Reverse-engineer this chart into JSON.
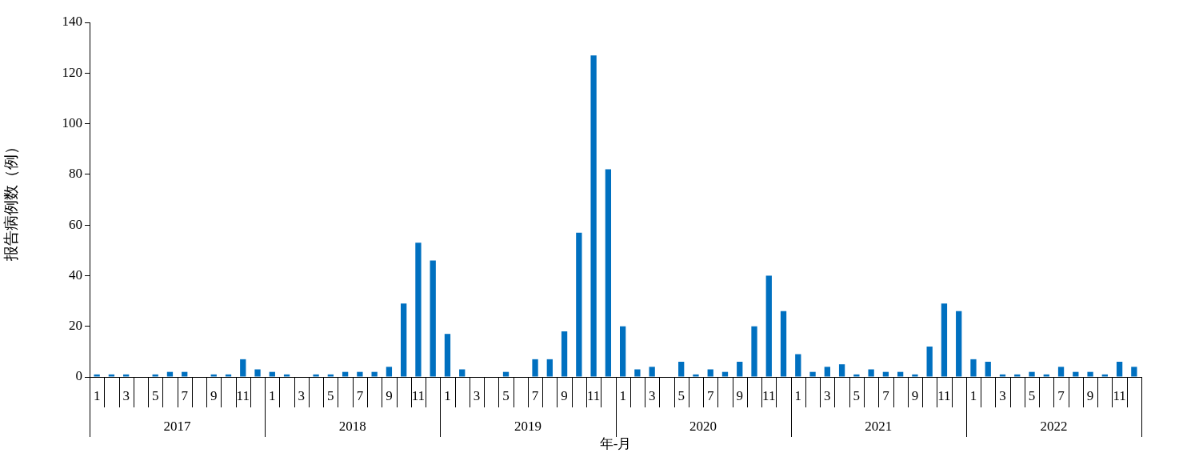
{
  "chart_data": {
    "type": "bar",
    "xlabel": "年-月",
    "ylabel": "报告病例数（例）",
    "categories": [
      "1",
      null,
      "3",
      null,
      "5",
      null,
      "7",
      null,
      "9",
      null,
      "11",
      null,
      "1",
      null,
      "3",
      null,
      "5",
      null,
      "7",
      null,
      "9",
      null,
      "11",
      null,
      "1",
      null,
      "3",
      null,
      "5",
      null,
      "7",
      null,
      "9",
      null,
      "11",
      null,
      "1",
      null,
      "3",
      null,
      "5",
      null,
      "7",
      null,
      "9",
      null,
      "11",
      null,
      "1",
      null,
      "3",
      null,
      "5",
      null,
      "7",
      null,
      "9",
      null,
      "11",
      null,
      "1",
      null,
      "3",
      null,
      "5",
      null,
      "7",
      null,
      "9",
      null,
      "11",
      null
    ],
    "values": [
      1,
      1,
      1,
      0,
      1,
      2,
      2,
      0,
      1,
      1,
      7,
      3,
      2,
      1,
      0,
      1,
      1,
      2,
      2,
      2,
      4,
      29,
      53,
      46,
      17,
      3,
      0,
      0,
      2,
      0,
      7,
      7,
      18,
      57,
      127,
      82,
      20,
      3,
      4,
      0,
      6,
      1,
      3,
      2,
      6,
      20,
      40,
      26,
      9,
      2,
      4,
      5,
      1,
      3,
      2,
      2,
      1,
      12,
      29,
      26,
      7,
      6,
      1,
      1,
      2,
      1,
      4,
      2,
      2,
      1,
      6,
      4
    ],
    "color": "#0070c0",
    "ylim": [
      0,
      140
    ],
    "yticks": [
      0,
      20,
      40,
      60,
      80,
      100,
      120,
      140
    ],
    "grid": false,
    "legend": false,
    "annotations": [
      "2017",
      "2018",
      "2019",
      "2020",
      "2021",
      "2022"
    ]
  }
}
